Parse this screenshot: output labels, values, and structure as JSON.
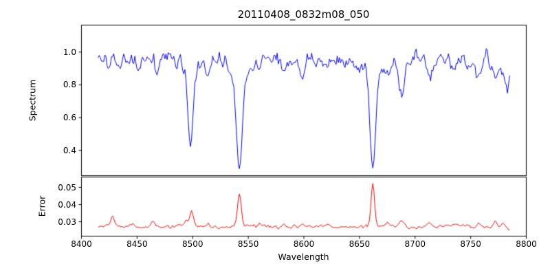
{
  "title": "20110408_0832m08_050",
  "xlabel": "Wavelength",
  "colors": {
    "background": "#ffffff",
    "axis": "#000000",
    "spectrum_line": "#0000ff",
    "error_line": "#ff0000",
    "text": "#000000"
  },
  "xticks": [
    {
      "value": 8400,
      "label": "8400"
    },
    {
      "value": 8450,
      "label": "8450"
    },
    {
      "value": 8500,
      "label": "8500"
    },
    {
      "value": 8550,
      "label": "8550"
    },
    {
      "value": 8600,
      "label": "8600"
    },
    {
      "value": 8650,
      "label": "8650"
    },
    {
      "value": 8700,
      "label": "8700"
    },
    {
      "value": 8750,
      "label": "8750"
    },
    {
      "value": 8800,
      "label": "8800"
    }
  ],
  "chart_data": [
    {
      "type": "line",
      "name": "spectrum",
      "ylabel": "Spectrum",
      "color": "#0000ff",
      "xlim": [
        8400,
        8800
      ],
      "ylim": [
        0.245,
        1.165
      ],
      "yticks": [
        {
          "value": 0.4,
          "label": "0.4"
        },
        {
          "value": 0.6,
          "label": "0.6"
        },
        {
          "value": 0.8,
          "label": "0.8"
        },
        {
          "value": 1.0,
          "label": "1.0"
        }
      ],
      "x_start": 8415,
      "x_end": 8785,
      "x_step": 1,
      "continuum": 0.955,
      "wiggle": {
        "amplitude": 0.012,
        "period": 47
      },
      "noise_sigma": 0.02,
      "noise_rho": 0.35,
      "seed": 20110408,
      "floor": 0.275,
      "notes": "Ca II triplet absorption lines at 8498, 8542, 8662",
      "absorption_lines": [
        {
          "center": 8424,
          "depth": 0.06,
          "width": 2.0
        },
        {
          "center": 8434,
          "depth": 0.05,
          "width": 2.0
        },
        {
          "center": 8451,
          "depth": 0.05,
          "width": 2.0
        },
        {
          "center": 8468,
          "depth": 0.09,
          "width": 2.4
        },
        {
          "center": 8484,
          "depth": 0.05,
          "width": 2.0
        },
        {
          "center": 8498,
          "depth": 0.47,
          "width": 2.2
        },
        {
          "center": 8498,
          "depth": 0.07,
          "width": 6.0
        },
        {
          "center": 8514,
          "depth": 0.11,
          "width": 2.2
        },
        {
          "center": 8542,
          "depth": 0.6,
          "width": 2.6
        },
        {
          "center": 8542,
          "depth": 0.1,
          "width": 8.0
        },
        {
          "center": 8560,
          "depth": 0.05,
          "width": 2.0
        },
        {
          "center": 8582,
          "depth": 0.09,
          "width": 2.2
        },
        {
          "center": 8598,
          "depth": 0.08,
          "width": 2.2
        },
        {
          "center": 8611,
          "depth": 0.05,
          "width": 2.0
        },
        {
          "center": 8621,
          "depth": 0.07,
          "width": 2.0
        },
        {
          "center": 8648,
          "depth": 0.06,
          "width": 2.0
        },
        {
          "center": 8662,
          "depth": 0.6,
          "width": 2.5
        },
        {
          "center": 8662,
          "depth": 0.1,
          "width": 7.0
        },
        {
          "center": 8675,
          "depth": 0.09,
          "width": 2.2
        },
        {
          "center": 8688,
          "depth": 0.25,
          "width": 2.3
        },
        {
          "center": 8713,
          "depth": 0.13,
          "width": 2.3
        },
        {
          "center": 8736,
          "depth": 0.07,
          "width": 2.0
        },
        {
          "center": 8748,
          "depth": 0.06,
          "width": 2.0
        },
        {
          "center": 8757,
          "depth": 0.11,
          "width": 2.2
        },
        {
          "center": 8772,
          "depth": 0.13,
          "width": 2.2
        },
        {
          "center": 8783,
          "depth": 0.16,
          "width": 2.5
        }
      ]
    },
    {
      "type": "line",
      "name": "error",
      "ylabel": "Error",
      "color": "#ff0000",
      "xlim": [
        8400,
        8800
      ],
      "ylim": [
        0.0216,
        0.056
      ],
      "yticks": [
        {
          "value": 0.03,
          "label": "0.03"
        },
        {
          "value": 0.04,
          "label": "0.04"
        },
        {
          "value": 0.05,
          "label": "0.05"
        }
      ],
      "x_start": 8415,
      "x_end": 8785,
      "x_step": 1,
      "baseline": 0.0272,
      "wiggle": {
        "amplitude": 0.0004,
        "period": 60
      },
      "noise_sigma": 0.0004,
      "noise_rho": 0.4,
      "seed": 832,
      "min": 0.024,
      "peaks": [
        {
          "center": 8428,
          "height": 0.0055,
          "width": 1.6
        },
        {
          "center": 8446,
          "height": 0.0018,
          "width": 1.5
        },
        {
          "center": 8464,
          "height": 0.0032,
          "width": 1.8
        },
        {
          "center": 8494,
          "height": 0.0035,
          "width": 1.4
        },
        {
          "center": 8499,
          "height": 0.0085,
          "width": 1.6
        },
        {
          "center": 8514,
          "height": 0.0022,
          "width": 1.5
        },
        {
          "center": 8542,
          "height": 0.018,
          "width": 1.7
        },
        {
          "center": 8561,
          "height": 0.0012,
          "width": 1.5
        },
        {
          "center": 8582,
          "height": 0.0018,
          "width": 1.5
        },
        {
          "center": 8598,
          "height": 0.0014,
          "width": 1.5
        },
        {
          "center": 8621,
          "height": 0.0012,
          "width": 1.5
        },
        {
          "center": 8662,
          "height": 0.025,
          "width": 1.5
        },
        {
          "center": 8675,
          "height": 0.0016,
          "width": 1.5
        },
        {
          "center": 8688,
          "height": 0.0038,
          "width": 1.8
        },
        {
          "center": 8713,
          "height": 0.0022,
          "width": 1.8
        },
        {
          "center": 8736,
          "height": 0.0012,
          "width": 1.5
        },
        {
          "center": 8757,
          "height": 0.0026,
          "width": 1.6
        },
        {
          "center": 8772,
          "height": 0.003,
          "width": 1.6
        },
        {
          "center": 8779,
          "height": 0.0022,
          "width": 1.4
        },
        {
          "center": 8785,
          "height": -0.0022,
          "width": 2.0
        }
      ]
    }
  ]
}
